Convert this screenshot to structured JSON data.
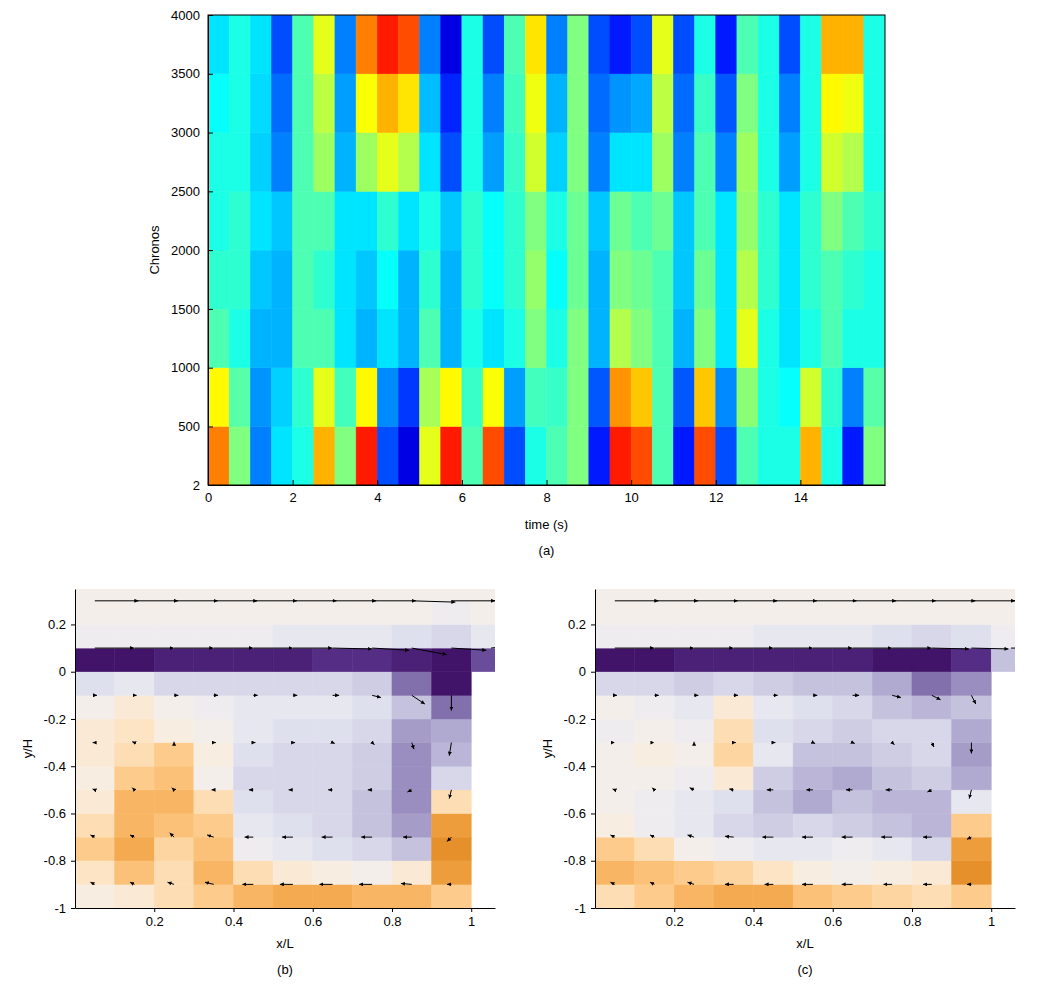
{
  "chart_data": [
    {
      "type": "heatmap",
      "panel_label": "(a)",
      "xlabel": "time (s)",
      "ylabel": "Chronos",
      "xlim": [
        0,
        16
      ],
      "xticks": [
        0,
        2,
        4,
        6,
        8,
        10,
        12,
        14
      ],
      "ylim": [
        2,
        4000
      ],
      "yticks": [
        2,
        500,
        1000,
        1500,
        2000,
        2500,
        3000,
        3500,
        4000
      ],
      "zlim": [
        0,
        1
      ],
      "x_edges": [
        0,
        0.5,
        1,
        1.5,
        2,
        2.5,
        3,
        3.5,
        4,
        4.5,
        5,
        5.5,
        6,
        6.5,
        7,
        7.5,
        8,
        8.5,
        9,
        9.5,
        10,
        10.5,
        11,
        11.5,
        12,
        12.5,
        13,
        13.5,
        14,
        14.5,
        15,
        15.5,
        16
      ],
      "y_edges": [
        2,
        500,
        1000,
        1500,
        2000,
        2500,
        3000,
        3500,
        4000
      ],
      "values": [
        [
          0.75,
          0.5,
          0.25,
          0.35,
          0.4,
          0.7,
          0.5,
          0.85,
          0.2,
          0.1,
          0.6,
          0.85,
          0.45,
          0.8,
          0.2,
          0.4,
          0.45,
          0.5,
          0.15,
          0.85,
          0.8,
          0.45,
          0.15,
          0.8,
          0.2,
          0.45,
          0.4,
          0.4,
          0.7,
          0.4,
          0.15,
          0.5
        ],
        [
          0.63,
          0.46,
          0.27,
          0.33,
          0.42,
          0.6,
          0.44,
          0.63,
          0.26,
          0.18,
          0.54,
          0.63,
          0.43,
          0.62,
          0.28,
          0.44,
          0.43,
          0.5,
          0.21,
          0.73,
          0.68,
          0.45,
          0.21,
          0.68,
          0.26,
          0.51,
          0.4,
          0.38,
          0.58,
          0.42,
          0.25,
          0.46
        ],
        [
          0.45,
          0.4,
          0.3,
          0.3,
          0.45,
          0.45,
          0.35,
          0.3,
          0.35,
          0.3,
          0.45,
          0.3,
          0.4,
          0.35,
          0.4,
          0.5,
          0.4,
          0.5,
          0.3,
          0.55,
          0.5,
          0.45,
          0.3,
          0.5,
          0.35,
          0.6,
          0.4,
          0.35,
          0.4,
          0.45,
          0.4,
          0.4
        ],
        [
          0.42,
          0.42,
          0.32,
          0.3,
          0.45,
          0.42,
          0.35,
          0.32,
          0.38,
          0.3,
          0.42,
          0.3,
          0.42,
          0.38,
          0.42,
          0.52,
          0.38,
          0.48,
          0.3,
          0.5,
          0.48,
          0.45,
          0.32,
          0.48,
          0.35,
          0.55,
          0.42,
          0.35,
          0.42,
          0.45,
          0.42,
          0.4
        ],
        [
          0.4,
          0.42,
          0.35,
          0.32,
          0.45,
          0.45,
          0.35,
          0.35,
          0.42,
          0.35,
          0.4,
          0.32,
          0.42,
          0.38,
          0.42,
          0.5,
          0.4,
          0.48,
          0.32,
          0.48,
          0.45,
          0.48,
          0.32,
          0.45,
          0.35,
          0.52,
          0.42,
          0.35,
          0.42,
          0.5,
          0.45,
          0.42
        ],
        [
          0.4,
          0.4,
          0.33,
          0.25,
          0.45,
          0.53,
          0.3,
          0.53,
          0.6,
          0.55,
          0.35,
          0.2,
          0.4,
          0.28,
          0.43,
          0.58,
          0.33,
          0.5,
          0.25,
          0.35,
          0.35,
          0.53,
          0.25,
          0.45,
          0.25,
          0.53,
          0.4,
          0.28,
          0.4,
          0.58,
          0.55,
          0.4
        ],
        [
          0.38,
          0.4,
          0.34,
          0.23,
          0.45,
          0.56,
          0.28,
          0.62,
          0.7,
          0.65,
          0.31,
          0.16,
          0.4,
          0.25,
          0.44,
          0.61,
          0.3,
          0.5,
          0.23,
          0.27,
          0.29,
          0.56,
          0.23,
          0.43,
          0.21,
          0.5,
          0.4,
          0.25,
          0.4,
          0.63,
          0.61,
          0.4
        ],
        [
          0.35,
          0.4,
          0.35,
          0.2,
          0.45,
          0.6,
          0.25,
          0.75,
          0.85,
          0.8,
          0.25,
          0.1,
          0.4,
          0.2,
          0.45,
          0.65,
          0.25,
          0.5,
          0.2,
          0.15,
          0.2,
          0.6,
          0.2,
          0.4,
          0.15,
          0.45,
          0.4,
          0.2,
          0.4,
          0.7,
          0.7,
          0.4
        ]
      ]
    },
    {
      "type": "vector_field",
      "panel_label": "(b)",
      "xlabel": "x/L",
      "ylabel": "y/H",
      "xlim": [
        0,
        1.06
      ],
      "xticks": [
        0.2,
        0.4,
        0.6,
        0.8,
        1
      ],
      "ylim": [
        -1,
        0.35
      ],
      "yticks": [
        -1,
        -0.8,
        -0.6,
        -0.4,
        -0.2,
        0,
        0.2
      ],
      "vorticity_lim": [
        -1,
        1
      ],
      "cell_x_edges": [
        0,
        0.1,
        0.2,
        0.3,
        0.4,
        0.5,
        0.6,
        0.7,
        0.8,
        0.9,
        1,
        1.1
      ],
      "cell_y_edges": [
        -1,
        -0.9,
        -0.8,
        -0.7,
        -0.6,
        -0.5,
        -0.4,
        -0.3,
        -0.2,
        -0.1,
        0,
        0.1,
        0.2,
        0.3,
        0.4
      ],
      "vorticity": [
        [
          -0.05,
          -0.1,
          -0.2,
          -0.3,
          -0.4,
          -0.45,
          -0.45,
          -0.4,
          -0.4,
          -0.3,
          null
        ],
        [
          -0.15,
          -0.35,
          -0.2,
          -0.4,
          -0.2,
          -0.1,
          -0.05,
          0,
          -0.1,
          -0.5,
          null
        ],
        [
          -0.3,
          -0.45,
          -0.25,
          -0.35,
          0.05,
          0.1,
          0.15,
          0.2,
          0.3,
          -0.55,
          null
        ],
        [
          -0.2,
          -0.4,
          -0.35,
          -0.3,
          0.1,
          0.15,
          0.2,
          0.3,
          0.45,
          -0.5,
          null
        ],
        [
          -0.1,
          -0.4,
          -0.4,
          -0.2,
          0.15,
          0.2,
          0.2,
          0.3,
          0.5,
          -0.2,
          null
        ],
        [
          -0.05,
          -0.3,
          -0.35,
          0,
          0.2,
          0.2,
          0.2,
          0.25,
          0.5,
          0.2,
          null
        ],
        [
          -0.1,
          -0.2,
          -0.3,
          -0.05,
          0.15,
          0.2,
          0.2,
          0.25,
          0.5,
          0.35,
          null
        ],
        [
          -0.1,
          -0.15,
          -0.05,
          0,
          0.1,
          0.15,
          0.15,
          0.2,
          0.45,
          0.4,
          null
        ],
        [
          0,
          -0.1,
          0,
          0.05,
          0.1,
          0.1,
          0.1,
          0.15,
          0.3,
          0.6,
          null
        ],
        [
          0.15,
          0.1,
          0.2,
          0.2,
          0.2,
          0.2,
          0.2,
          0.25,
          0.6,
          0.9,
          null
        ],
        [
          0.9,
          0.9,
          0.85,
          0.85,
          0.85,
          0.85,
          0.8,
          0.8,
          0.85,
          0.9,
          0.7
        ],
        [
          0.05,
          0.05,
          0.05,
          0.05,
          0.05,
          0.1,
          0.1,
          0.1,
          0.15,
          0.2,
          0.1
        ],
        [
          0,
          0,
          0,
          0,
          0,
          0,
          0,
          0,
          0,
          0.05,
          0
        ],
        [
          0,
          0,
          0,
          0,
          0,
          0,
          0,
          0,
          0,
          0,
          0
        ]
      ],
      "vector_x": [
        0.05,
        0.15,
        0.25,
        0.35,
        0.45,
        0.55,
        0.65,
        0.75,
        0.85,
        0.95,
        1.05
      ],
      "vector_y": [
        -0.9,
        -0.7,
        -0.5,
        -0.3,
        -0.1,
        0.1,
        0.3
      ],
      "u": [
        [
          -0.1,
          -0.1,
          -0.15,
          -0.2,
          -0.25,
          -0.3,
          -0.3,
          -0.3,
          -0.25,
          -0.1,
          null
        ],
        [
          -0.1,
          -0.1,
          -0.1,
          -0.15,
          -0.2,
          -0.25,
          -0.25,
          -0.25,
          -0.2,
          -0.1,
          null
        ],
        [
          -0.05,
          -0.05,
          -0.05,
          -0.05,
          -0.1,
          -0.1,
          -0.1,
          -0.1,
          -0.1,
          -0.05,
          null
        ],
        [
          -0.05,
          -0.05,
          0,
          0.05,
          0.05,
          0.05,
          0.05,
          0.05,
          0.05,
          -0.05,
          null
        ],
        [
          0.05,
          0.05,
          0.1,
          0.1,
          0.1,
          0.1,
          0.15,
          0.2,
          0.3,
          0,
          null
        ],
        [
          0.9,
          0.9,
          0.9,
          0.9,
          0.9,
          0.9,
          0.9,
          0.85,
          0.8,
          0.8,
          0.9
        ],
        [
          1,
          1,
          1,
          1,
          1,
          1,
          1,
          1,
          1,
          1,
          1
        ]
      ],
      "v": [
        [
          0.05,
          0.05,
          0.05,
          0.05,
          0,
          0,
          0,
          0,
          0.02,
          0,
          null
        ],
        [
          0.05,
          0.05,
          0.1,
          0.05,
          0,
          0,
          0,
          0,
          0,
          -0.1,
          null
        ],
        [
          0.02,
          0.05,
          0.05,
          0,
          0,
          0,
          0,
          0,
          -0.05,
          -0.2,
          null
        ],
        [
          0,
          0.02,
          0.02,
          0,
          0,
          0,
          -0.02,
          -0.05,
          -0.15,
          -0.3,
          null
        ],
        [
          0,
          0,
          0,
          0,
          0,
          0,
          0,
          -0.05,
          -0.2,
          -0.35,
          null
        ],
        [
          0,
          0,
          0,
          0,
          0,
          0,
          -0.02,
          -0.05,
          -0.15,
          -0.05,
          0.1
        ],
        [
          0,
          0,
          0,
          0,
          0,
          0,
          0,
          0,
          -0.03,
          0,
          0.02
        ]
      ]
    },
    {
      "type": "vector_field",
      "panel_label": "(c)",
      "xlabel": "x/L",
      "ylabel": "y/H",
      "xlim": [
        0,
        1.06
      ],
      "xticks": [
        0.2,
        0.4,
        0.6,
        0.8,
        1
      ],
      "ylim": [
        -1,
        0.35
      ],
      "yticks": [
        -1,
        -0.8,
        -0.6,
        -0.4,
        -0.2,
        0,
        0.2
      ],
      "vorticity_lim": [
        -1,
        1
      ],
      "cell_x_edges": [
        0,
        0.1,
        0.2,
        0.3,
        0.4,
        0.5,
        0.6,
        0.7,
        0.8,
        0.9,
        1,
        1.1
      ],
      "cell_y_edges": [
        -1,
        -0.9,
        -0.8,
        -0.7,
        -0.6,
        -0.5,
        -0.4,
        -0.3,
        -0.2,
        -0.1,
        0,
        0.1,
        0.2,
        0.3,
        0.4
      ],
      "vorticity": [
        [
          -0.2,
          -0.3,
          -0.4,
          -0.45,
          -0.45,
          -0.35,
          -0.3,
          -0.25,
          -0.2,
          -0.3,
          null
        ],
        [
          -0.4,
          -0.35,
          -0.3,
          -0.25,
          -0.15,
          -0.05,
          0,
          -0.05,
          -0.1,
          -0.55,
          null
        ],
        [
          -0.3,
          -0.2,
          0,
          0.05,
          0.1,
          0.1,
          0.05,
          0.1,
          0.2,
          -0.5,
          null
        ],
        [
          -0.05,
          0.05,
          0.1,
          0.2,
          0.25,
          0.2,
          0.25,
          0.3,
          0.35,
          -0.3,
          null
        ],
        [
          0,
          0.05,
          0.1,
          0.15,
          0.3,
          0.4,
          0.3,
          0.35,
          0.35,
          0.1,
          null
        ],
        [
          0,
          0,
          0.05,
          -0.1,
          0.25,
          0.35,
          0.4,
          0.3,
          0.25,
          0.4,
          null
        ],
        [
          0,
          -0.05,
          0,
          -0.25,
          0.1,
          0.3,
          0.3,
          0.25,
          0.2,
          0.45,
          null
        ],
        [
          0.05,
          0,
          0.05,
          -0.2,
          0.15,
          0.2,
          0.25,
          0.2,
          0.2,
          0.4,
          null
        ],
        [
          0,
          0.05,
          0.1,
          -0.1,
          0.1,
          0.15,
          0.2,
          0.3,
          0.35,
          0.3,
          null
        ],
        [
          0.2,
          0.2,
          0.25,
          0.2,
          0.25,
          0.3,
          0.3,
          0.4,
          0.6,
          0.5,
          null
        ],
        [
          0.9,
          0.9,
          0.85,
          0.85,
          0.85,
          0.85,
          0.85,
          0.9,
          0.9,
          0.8,
          0.3
        ],
        [
          0.05,
          0.05,
          0.05,
          0.05,
          0.1,
          0.1,
          0.1,
          0.15,
          0.2,
          0.15,
          0.05
        ],
        [
          0,
          0,
          0,
          0,
          0,
          0,
          0,
          0,
          0,
          0,
          0
        ],
        [
          0,
          0,
          0,
          0,
          0,
          0,
          0,
          0,
          0,
          0,
          0
        ]
      ],
      "vector_x": [
        0.05,
        0.15,
        0.25,
        0.35,
        0.45,
        0.55,
        0.65,
        0.75,
        0.85,
        0.95,
        1.05
      ],
      "vector_y": [
        -0.9,
        -0.7,
        -0.5,
        -0.3,
        -0.1,
        0.1,
        0.3
      ],
      "u": [
        [
          -0.1,
          -0.1,
          -0.15,
          -0.2,
          -0.2,
          -0.25,
          -0.25,
          -0.2,
          -0.2,
          -0.1,
          null
        ],
        [
          -0.1,
          -0.1,
          -0.15,
          -0.2,
          -0.25,
          -0.25,
          -0.25,
          -0.25,
          -0.2,
          -0.1,
          null
        ],
        [
          -0.05,
          -0.05,
          -0.1,
          -0.1,
          -0.15,
          -0.15,
          -0.15,
          -0.15,
          -0.1,
          -0.05,
          null
        ],
        [
          0,
          0,
          0,
          0.05,
          0.05,
          0.05,
          0.05,
          0.05,
          0.05,
          0,
          null
        ],
        [
          0.05,
          0.1,
          0.1,
          0.1,
          0.1,
          0.1,
          0.15,
          0.2,
          0.2,
          0.1,
          null
        ],
        [
          0.9,
          0.9,
          0.9,
          0.9,
          0.9,
          0.9,
          0.9,
          0.9,
          0.85,
          0.85,
          0.9
        ],
        [
          1,
          1,
          1,
          1,
          1,
          1,
          1,
          1,
          1,
          1,
          1
        ]
      ],
      "v": [
        [
          0.05,
          0.05,
          0.05,
          0,
          0,
          0,
          0,
          0,
          0,
          0,
          null
        ],
        [
          0.05,
          0.05,
          0.05,
          0.02,
          0,
          0,
          0,
          0,
          0,
          -0.05,
          null
        ],
        [
          0.02,
          0.05,
          0.05,
          0.02,
          0,
          0,
          0,
          0,
          -0.05,
          -0.2,
          null
        ],
        [
          0,
          0,
          0.02,
          0,
          0,
          -0.02,
          -0.02,
          -0.05,
          -0.1,
          -0.25,
          null
        ],
        [
          0,
          0,
          0,
          0,
          0,
          0,
          0,
          -0.05,
          -0.1,
          -0.2,
          null
        ],
        [
          0,
          0,
          0,
          0,
          0,
          0,
          0,
          0,
          -0.02,
          -0.02,
          0
        ],
        [
          0,
          0,
          0,
          0,
          0,
          0,
          0,
          0,
          0,
          0,
          0
        ]
      ]
    }
  ]
}
